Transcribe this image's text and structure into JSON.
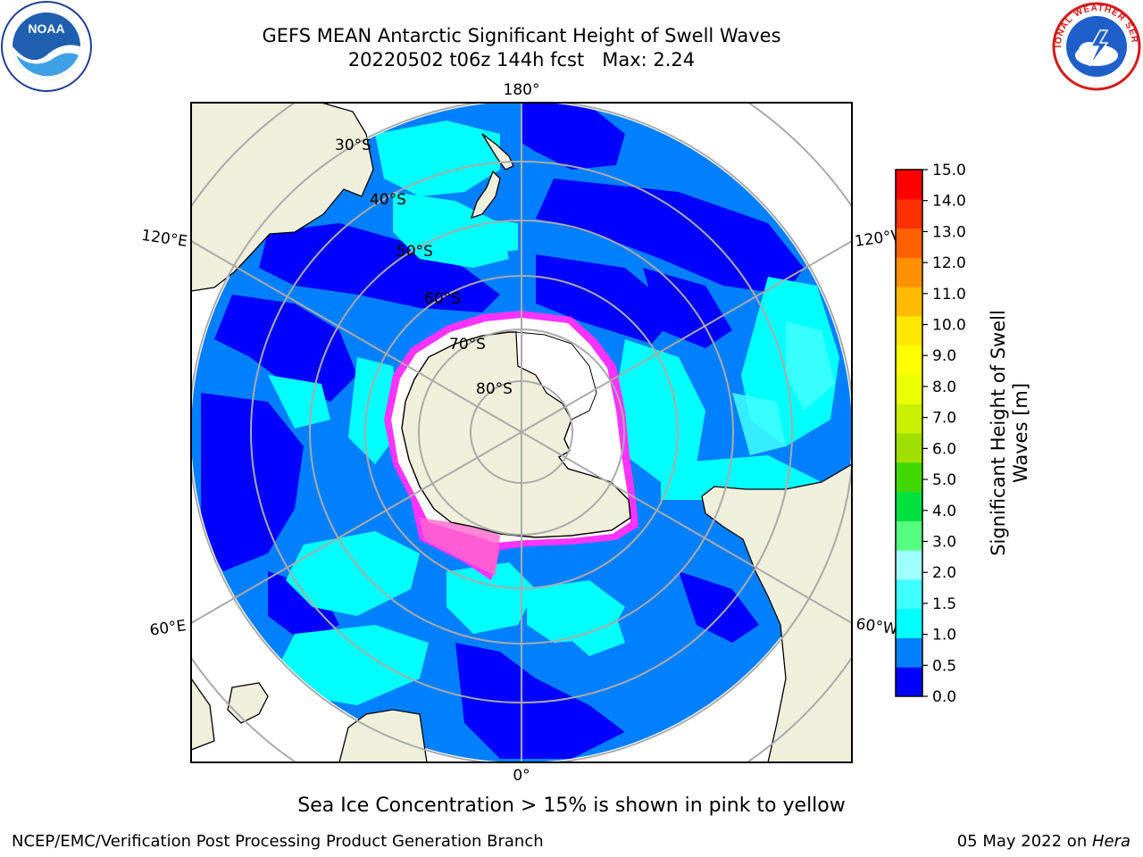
{
  "title": {
    "line1": "GEFS MEAN Antarctic Significant Height of Swell Waves",
    "line2": "20220502 t06z 144h fcst   Max: 2.24"
  },
  "logos": {
    "noaa": {
      "text": "NOAA",
      "icon": "noaa-seal-icon"
    },
    "nws": {
      "text": "NATIONAL WEATHER SERVICE",
      "icon": "nws-seal-icon"
    }
  },
  "map": {
    "projection": "south-polar-stereographic",
    "lon_labels": {
      "top": "180°",
      "bottom": "0°",
      "upper_left": "120°E",
      "upper_right": "120°W",
      "lower_left": "60°E",
      "lower_right": "60°W"
    },
    "lat_labels": [
      "30°S",
      "40°S",
      "50°S",
      "60°S",
      "70°S",
      "80°S"
    ]
  },
  "colorbar": {
    "label_line1": "Significant Height of Swell",
    "label_line2": "Waves [m]",
    "ticks": [
      "0.0",
      "0.5",
      "1.0",
      "1.5",
      "2.0",
      "3.0",
      "4.0",
      "5.0",
      "6.0",
      "7.0",
      "8.0",
      "9.0",
      "10.0",
      "11.0",
      "12.0",
      "13.0",
      "14.0",
      "15.0"
    ],
    "colors": [
      "#0000ff",
      "#0080ff",
      "#00ffff",
      "#40ffff",
      "#a0ffff",
      "#55ff80",
      "#00e040",
      "#40d800",
      "#a0e000",
      "#c8f000",
      "#ecff00",
      "#ffff00",
      "#ffe800",
      "#ffbb00",
      "#ff9000",
      "#ff6000",
      "#ff3000",
      "#ff0000"
    ]
  },
  "footer": {
    "note": "Sea Ice Concentration > 15% is shown in pink to yellow",
    "left": "NCEP/EMC/Verification Post Processing Product Generation Branch",
    "right_date": "05 May 2022 on ",
    "right_machine": "Hera"
  }
}
